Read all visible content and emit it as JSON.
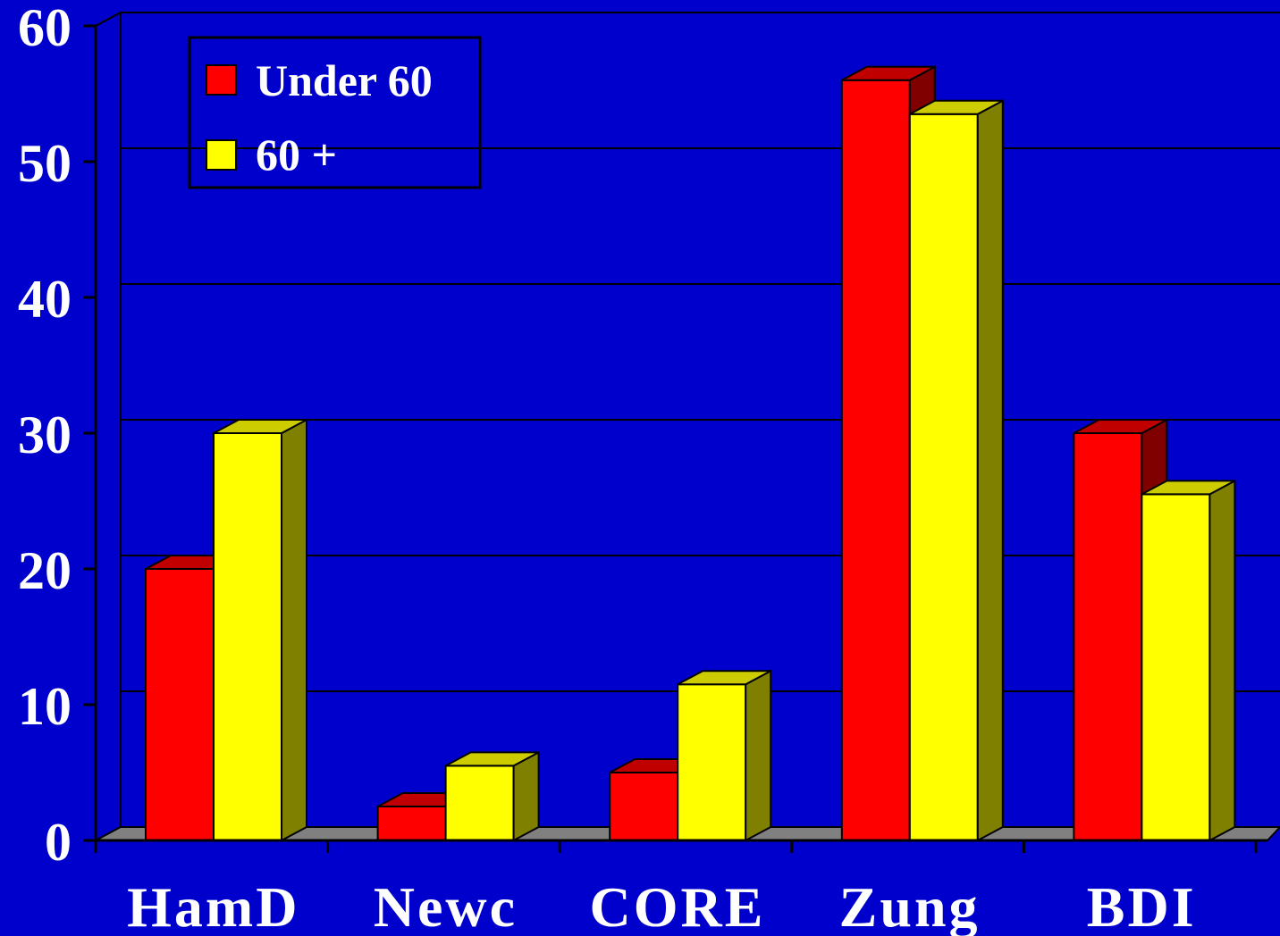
{
  "chart_data": {
    "type": "bar",
    "style": "3d-clustered",
    "categories": [
      "HamD",
      "Newc",
      "CORE",
      "Zung",
      "BDI"
    ],
    "series": [
      {
        "name": "Under 60",
        "values": [
          20,
          2.5,
          5,
          56,
          30
        ],
        "color": "#FF0000",
        "side_color": "#800000",
        "top_color": "#C00000"
      },
      {
        "name": "60 +",
        "values": [
          30,
          5.5,
          11.5,
          53.5,
          25.5
        ],
        "color": "#FFFF00",
        "side_color": "#808000",
        "top_color": "#CCCC00"
      }
    ],
    "title": "",
    "xlabel": "",
    "ylabel": "",
    "ylim": [
      0,
      60
    ],
    "yticks": [
      0,
      10,
      20,
      30,
      40,
      50,
      60
    ],
    "grid": true,
    "legend": "top-left"
  },
  "colors": {
    "background": "#0000CC",
    "axis": "#000000",
    "floor": "#808080",
    "text": "#FFFFFF"
  }
}
